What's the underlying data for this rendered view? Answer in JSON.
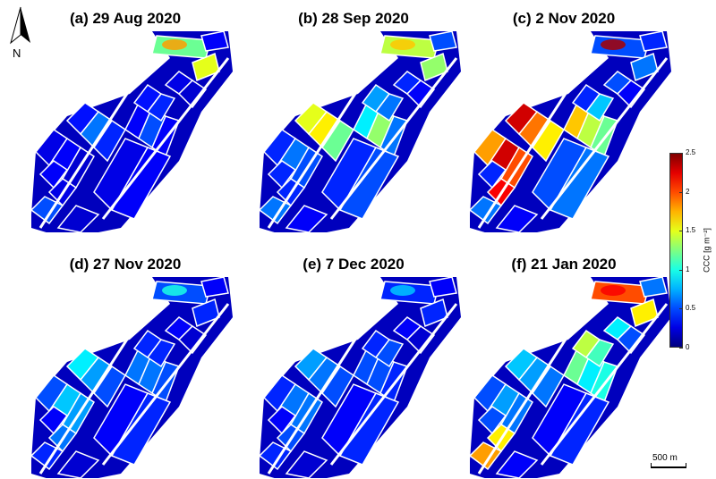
{
  "panels": [
    {
      "title": "(a) 29 Aug 2020",
      "field_levels": [
        0.25,
        0.3,
        0.2,
        0.35,
        0.6,
        0.4,
        0.3,
        0.5,
        0.3,
        0.25,
        0.3,
        0.35,
        0.4,
        0.25,
        0.2,
        1.2,
        1.5,
        0.3,
        0.5,
        0.2,
        0.3,
        0.25
      ],
      "hotspot_level": 1.8
    },
    {
      "title": "(b) 28 Sep 2020",
      "field_levels": [
        0.4,
        0.6,
        0.5,
        1.5,
        1.6,
        1.2,
        0.9,
        1.3,
        0.6,
        0.4,
        0.5,
        0.7,
        0.6,
        0.4,
        0.3,
        1.4,
        1.3,
        0.5,
        0.6,
        0.3,
        0.4,
        0.4
      ],
      "hotspot_level": 1.7
    },
    {
      "title": "(c) 2 Nov 2020",
      "field_levels": [
        1.8,
        2.3,
        2.0,
        2.3,
        1.9,
        1.6,
        1.7,
        1.4,
        1.2,
        0.5,
        0.6,
        0.4,
        0.8,
        0.5,
        0.3,
        0.5,
        0.6,
        0.4,
        0.6,
        0.3,
        0.4,
        2.2
      ],
      "hotspot_level": 2.4
    },
    {
      "title": "(d) 27 Nov 2020",
      "field_levels": [
        0.5,
        0.8,
        0.7,
        0.9,
        0.7,
        0.5,
        0.6,
        0.6,
        0.5,
        0.3,
        0.4,
        0.4,
        0.4,
        0.3,
        0.2,
        0.5,
        0.4,
        0.3,
        0.4,
        0.2,
        0.3,
        0.6
      ],
      "hotspot_level": 1.0
    },
    {
      "title": "(e) 7 Dec 2020",
      "field_levels": [
        0.4,
        0.6,
        0.6,
        0.7,
        0.6,
        0.5,
        0.5,
        0.5,
        0.4,
        0.3,
        0.4,
        0.4,
        0.5,
        0.3,
        0.2,
        0.4,
        0.4,
        0.3,
        0.4,
        0.2,
        0.3,
        0.5
      ],
      "hotspot_level": 0.8
    },
    {
      "title": "(f) 21 Jan 2020",
      "field_levels": [
        0.5,
        0.7,
        0.6,
        0.8,
        0.7,
        0.6,
        1.2,
        0.9,
        1.0,
        0.3,
        0.4,
        1.4,
        1.1,
        0.9,
        0.5,
        2.0,
        1.6,
        0.6,
        1.8,
        0.3,
        0.5,
        1.6
      ],
      "hotspot_level": 2.2
    }
  ],
  "compass": {
    "label": "N"
  },
  "colorbar": {
    "label": "CCC [g m⁻²]",
    "min": 0,
    "max": 2.5,
    "ticks": [
      "2.5",
      "2",
      "1.5",
      "1",
      "0.5",
      "0"
    ],
    "tick_values": [
      2.5,
      2,
      1.5,
      1,
      0.5,
      0
    ]
  },
  "scalebar": {
    "label": "500 m"
  }
}
